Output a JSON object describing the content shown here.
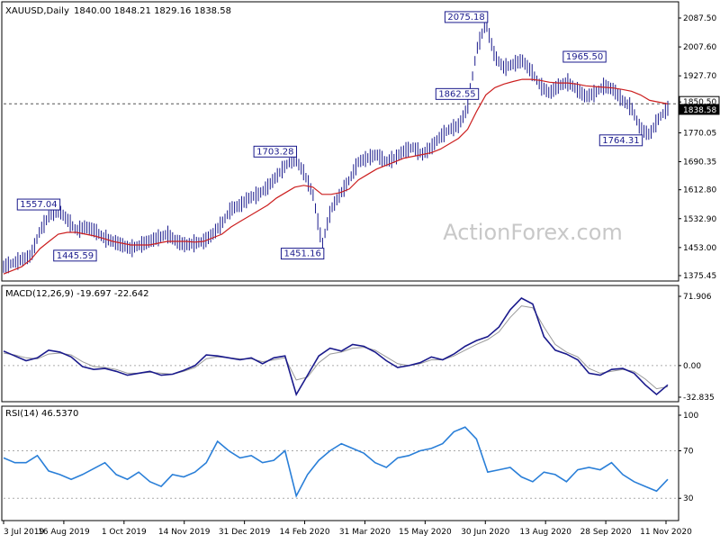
{
  "chart_data": [
    {
      "type": "candlestick",
      "panel": "price",
      "symbol_label": "XAUUSD,Daily",
      "ohlc_label": "1840.00 1848.21 1829.16 1838.58",
      "y_ticks": [
        "2087.50",
        "2007.60",
        "1927.70",
        "1850.50",
        "1838.58",
        "1770.05",
        "1690.35",
        "1612.80",
        "1532.90",
        "1453.00",
        "1375.45"
      ],
      "ylim": [
        1375.45,
        2087.5
      ],
      "x_ticks": [
        "3 Jul 2019",
        "16 Aug 2019",
        "1 Oct 2019",
        "14 Nov 2019",
        "31 Dec 2019",
        "14 Feb 2020",
        "31 Mar 2020",
        "15 May 2020",
        "30 Jun 2020",
        "13 Aug 2020",
        "28 Sep 2020",
        "11 Nov 2020"
      ],
      "annotations": [
        {
          "label": "1557.04",
          "value": 1557.04
        },
        {
          "label": "1445.59",
          "value": 1445.59
        },
        {
          "label": "1703.28",
          "value": 1703.28
        },
        {
          "label": "1451.16",
          "value": 1451.16
        },
        {
          "label": "2075.18",
          "value": 2075.18
        },
        {
          "label": "1862.55",
          "value": 1862.55
        },
        {
          "label": "1965.50",
          "value": 1965.5
        },
        {
          "label": "1764.31",
          "value": 1764.31
        }
      ],
      "highlighted_levels": [
        {
          "label": "1850.50",
          "value": 1850.5,
          "style": "dashed-horizontal"
        },
        {
          "label": "1838.58",
          "value": 1838.58,
          "style": "current-price"
        }
      ],
      "series": [
        {
          "name": "close",
          "color": "#1a1a8c",
          "values": [
            1400,
            1410,
            1420,
            1430,
            1500,
            1540,
            1557,
            1530,
            1500,
            1510,
            1500,
            1480,
            1470,
            1460,
            1450,
            1460,
            1470,
            1480,
            1490,
            1470,
            1460,
            1465,
            1470,
            1490,
            1520,
            1560,
            1570,
            1590,
            1600,
            1620,
            1650,
            1680,
            1700,
            1660,
            1600,
            1460,
            1560,
            1600,
            1640,
            1690,
            1700,
            1710,
            1690,
            1700,
            1720,
            1730,
            1710,
            1730,
            1760,
            1780,
            1790,
            1840,
            2000,
            2075,
            1980,
            1950,
            1960,
            1970,
            1940,
            1900,
            1880,
            1900,
            1910,
            1890,
            1870,
            1880,
            1900,
            1890,
            1860,
            1840,
            1780,
            1765,
            1810,
            1838
          ]
        },
        {
          "name": "ma",
          "color": "#cc1f1f",
          "values": [
            1380,
            1390,
            1400,
            1420,
            1450,
            1470,
            1490,
            1495,
            1495,
            1490,
            1485,
            1478,
            1470,
            1465,
            1460,
            1460,
            1460,
            1465,
            1470,
            1470,
            1470,
            1468,
            1470,
            1480,
            1490,
            1510,
            1525,
            1540,
            1555,
            1570,
            1590,
            1605,
            1620,
            1625,
            1620,
            1600,
            1600,
            1605,
            1615,
            1640,
            1655,
            1670,
            1680,
            1690,
            1700,
            1705,
            1710,
            1715,
            1725,
            1740,
            1755,
            1780,
            1830,
            1875,
            1895,
            1905,
            1912,
            1918,
            1918,
            1915,
            1910,
            1908,
            1908,
            1905,
            1900,
            1898,
            1896,
            1894,
            1890,
            1885,
            1875,
            1860,
            1855,
            1850
          ]
        }
      ]
    },
    {
      "type": "line",
      "panel": "macd",
      "label": "MACD(12,26,9) -19.697 -22.642",
      "y_ticks": [
        "71.906",
        "0.00",
        "-32.835"
      ],
      "ylim": [
        -32.835,
        71.906
      ],
      "series": [
        {
          "name": "macd",
          "color": "#1a1a8c",
          "values": [
            15,
            10,
            5,
            8,
            16,
            14,
            9,
            -1,
            -4,
            -3,
            -6,
            -10,
            -8,
            -6,
            -10,
            -9,
            -5,
            0,
            11,
            10,
            8,
            6,
            8,
            2,
            8,
            10,
            -30,
            -10,
            10,
            18,
            15,
            22,
            20,
            14,
            5,
            -2,
            0,
            3,
            9,
            6,
            12,
            20,
            26,
            30,
            40,
            58,
            70,
            64,
            30,
            16,
            12,
            6,
            -8,
            -10,
            -4,
            -3,
            -8,
            -20,
            -30,
            -20
          ]
        },
        {
          "name": "signal",
          "color": "#999999",
          "values": [
            13,
            11,
            8,
            7,
            12,
            13,
            11,
            4,
            -1,
            -2,
            -4,
            -8,
            -8,
            -7,
            -8,
            -9,
            -6,
            -2,
            7,
            9,
            8,
            7,
            7,
            4,
            6,
            8,
            -15,
            -12,
            3,
            12,
            14,
            18,
            19,
            16,
            9,
            2,
            0,
            2,
            6,
            6,
            10,
            16,
            22,
            27,
            35,
            50,
            62,
            60,
            40,
            22,
            14,
            9,
            -3,
            -8,
            -6,
            -4,
            -6,
            -14,
            -24,
            -22
          ]
        }
      ]
    },
    {
      "type": "line",
      "panel": "rsi",
      "label": "RSI(14) 46.5370",
      "y_ticks": [
        "100",
        "70",
        "30"
      ],
      "ylim": [
        15,
        100
      ],
      "series": [
        {
          "name": "rsi",
          "color": "#2a7fd8",
          "values": [
            64,
            60,
            60,
            66,
            53,
            50,
            46,
            50,
            55,
            60,
            50,
            46,
            52,
            44,
            40,
            50,
            48,
            52,
            60,
            78,
            70,
            64,
            66,
            60,
            62,
            70,
            32,
            50,
            62,
            70,
            76,
            72,
            68,
            60,
            56,
            64,
            66,
            70,
            72,
            76,
            86,
            90,
            80,
            52,
            54,
            56,
            48,
            44,
            52,
            50,
            44,
            54,
            56,
            54,
            60,
            50,
            44,
            40,
            36,
            46
          ]
        }
      ]
    }
  ],
  "watermark": "ActionForex.com"
}
